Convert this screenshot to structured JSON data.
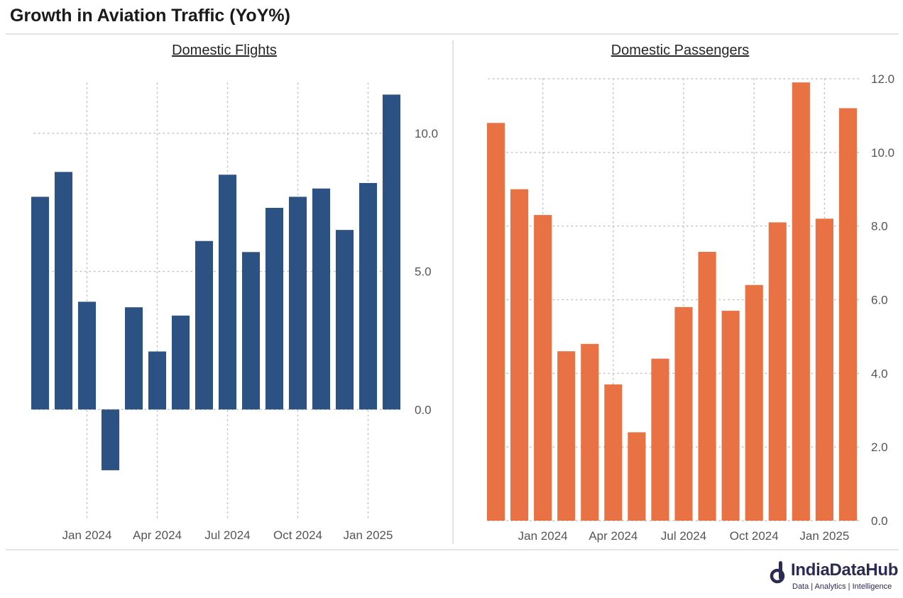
{
  "title": "Growth in Aviation Traffic (YoY%)",
  "brand": {
    "name": "IndiaDataHub",
    "tagline": "Data | Analytics | Intelligence",
    "color": "#2a2a52"
  },
  "chart_data": [
    {
      "type": "bar",
      "title": "Domestic Flights",
      "color": "#2b5283",
      "categories": [
        "Nov 2023",
        "Dec 2023",
        "Jan 2024",
        "Feb 2024",
        "Mar 2024",
        "Apr 2024",
        "May 2024",
        "Jun 2024",
        "Jul 2024",
        "Aug 2024",
        "Sep 2024",
        "Oct 2024",
        "Nov 2024",
        "Dec 2024",
        "Jan 2025",
        "Feb 2025"
      ],
      "values": [
        7.7,
        8.6,
        3.9,
        -2.2,
        3.7,
        2.1,
        3.4,
        6.1,
        8.5,
        5.7,
        7.3,
        7.7,
        8.0,
        6.5,
        8.2,
        11.4
      ],
      "x_tick_labels": [
        "Jan 2024",
        "Apr 2024",
        "Jul 2024",
        "Oct 2024",
        "Jan 2025"
      ],
      "y_ticks": [
        "0.0",
        "5.0",
        "10.0"
      ],
      "ylim": [
        -4.0,
        12.0
      ],
      "grid": true,
      "y_axis_side": "right"
    },
    {
      "type": "bar",
      "title": "Domestic Passengers",
      "color": "#e87244",
      "categories": [
        "Nov 2023",
        "Dec 2023",
        "Jan 2024",
        "Feb 2024",
        "Mar 2024",
        "Apr 2024",
        "May 2024",
        "Jun 2024",
        "Jul 2024",
        "Aug 2024",
        "Sep 2024",
        "Oct 2024",
        "Nov 2024",
        "Dec 2024",
        "Jan 2025",
        "Feb 2025"
      ],
      "values": [
        10.8,
        9.0,
        8.3,
        4.6,
        4.8,
        3.7,
        2.4,
        4.4,
        5.8,
        7.3,
        5.7,
        6.4,
        8.1,
        11.9,
        8.2,
        11.2
      ],
      "x_tick_labels": [
        "Jan 2024",
        "Apr 2024",
        "Jul 2024",
        "Oct 2024",
        "Jan 2025"
      ],
      "y_ticks": [
        "0.0",
        "2.0",
        "4.0",
        "6.0",
        "8.0",
        "10.0",
        "12.0"
      ],
      "ylim": [
        0.0,
        12.0
      ],
      "grid": true,
      "y_axis_side": "right"
    }
  ]
}
